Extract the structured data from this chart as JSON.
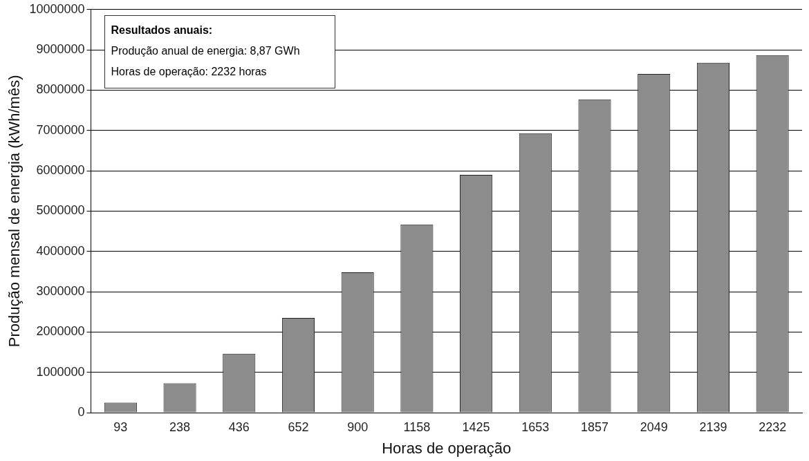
{
  "chart_data": {
    "type": "bar",
    "xlabel": "Horas de operação",
    "ylabel": "Produção mensal de energia (kWh/mês)",
    "categories": [
      "93",
      "238",
      "436",
      "652",
      "900",
      "1158",
      "1425",
      "1653",
      "1857",
      "2049",
      "2139",
      "2232"
    ],
    "values": [
      250000,
      730000,
      1460000,
      2350000,
      3480000,
      4670000,
      5900000,
      6930000,
      7770000,
      8400000,
      8680000,
      8870000
    ],
    "color": "#8c8c8c",
    "ylim": [
      0,
      10000000
    ],
    "yticks": [
      0,
      1000000,
      2000000,
      3000000,
      4000000,
      5000000,
      6000000,
      7000000,
      8000000,
      9000000,
      10000000
    ],
    "grid": "y",
    "annotations": [
      "Resultados anuais:",
      "Produção anual de energia: 8,87 GWh",
      "Horas de operação: 2232 horas"
    ]
  }
}
